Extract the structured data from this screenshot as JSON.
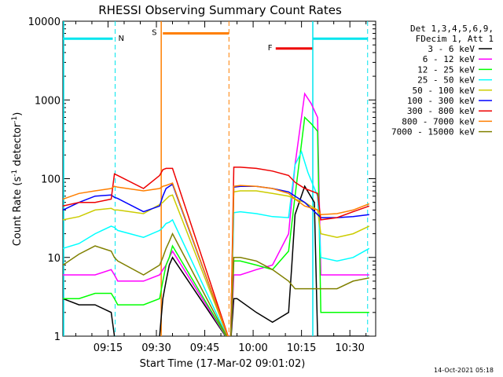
{
  "chart_data": {
    "type": "line",
    "title": "RHESSI Observing Summary Count Rates",
    "xlabel": "Start Time (17-Mar-02 09:01:02)",
    "ylabel_main": "Count Rate (s",
    "ylabel_sup": "-1",
    "ylabel_mid": " detector",
    "ylabel_end": ")",
    "yscale": "log",
    "ylim": [
      1,
      10000
    ],
    "xlim_minutes": [
      0,
      97
    ],
    "x_ticks": [
      "09:15",
      "09:30",
      "09:45",
      "10:00",
      "10:15",
      "10:30"
    ],
    "y_ticks": [
      "1",
      "10",
      "100",
      "1000",
      "10000"
    ],
    "legend_header": [
      "Det 1,3,4,5,6,9,",
      "FDecim 1, Att 1"
    ],
    "legend_position": "right",
    "footer": "14-Oct-2021 05:18",
    "flags": [
      {
        "label": "N",
        "color": "#00e5ee"
      },
      {
        "label": "S",
        "color": "#ff7f00"
      },
      {
        "label": "F",
        "color": "#ee0000"
      }
    ],
    "series": [
      {
        "name": "3 - 6 keV",
        "color": "#000000",
        "x": [
          0,
          5,
          10,
          15,
          16,
          17,
          25,
          30,
          31,
          32,
          33,
          34,
          52,
          53,
          54,
          60,
          65,
          70,
          71,
          72,
          75,
          78,
          79,
          80,
          85,
          90,
          95
        ],
        "y": [
          3,
          2.5,
          2.5,
          2,
          1,
          0.8,
          0.8,
          1,
          3,
          5,
          8,
          10,
          0.8,
          3,
          3,
          2,
          1.5,
          2,
          8,
          35,
          80,
          50,
          1,
          1,
          1,
          1,
          1
        ]
      },
      {
        "name": "6 - 12 keV",
        "color": "#ff00ff",
        "x": [
          0,
          5,
          10,
          15,
          16,
          17,
          25,
          30,
          31,
          32,
          33,
          34,
          52,
          53,
          55,
          60,
          65,
          70,
          72,
          75,
          77,
          79,
          80,
          85,
          90,
          95
        ],
        "y": [
          6,
          6,
          6,
          7,
          6,
          5,
          5,
          6,
          7,
          8,
          10,
          12,
          0.8,
          6,
          6,
          7,
          8,
          20,
          150,
          1200,
          900,
          600,
          6,
          6,
          6,
          6
        ]
      },
      {
        "name": "12 - 25 keV",
        "color": "#00ff00",
        "x": [
          0,
          5,
          10,
          15,
          16,
          17,
          25,
          30,
          31,
          32,
          33,
          34,
          52,
          53,
          55,
          60,
          65,
          70,
          72,
          75,
          77,
          79,
          80,
          85,
          90,
          95
        ],
        "y": [
          3,
          3,
          3.5,
          3.5,
          3,
          2.5,
          2.5,
          3,
          5,
          8,
          10,
          14,
          0.8,
          9,
          9,
          8,
          7,
          12,
          60,
          600,
          500,
          400,
          2,
          2,
          2,
          2
        ]
      },
      {
        "name": "25 - 50 keV",
        "color": "#00ffff",
        "x": [
          0,
          5,
          10,
          15,
          16,
          17,
          25,
          30,
          31,
          32,
          33,
          34,
          52,
          53,
          55,
          60,
          65,
          70,
          72,
          74,
          76,
          79,
          80,
          85,
          90,
          95
        ],
        "y": [
          13,
          15,
          20,
          25,
          24,
          22,
          18,
          22,
          24,
          27,
          28,
          30,
          0.8,
          37,
          38,
          36,
          33,
          32,
          150,
          220,
          120,
          60,
          10,
          9,
          10,
          13
        ]
      },
      {
        "name": "50 - 100 keV",
        "color": "#cccc00",
        "x": [
          0,
          5,
          10,
          15,
          16,
          17,
          25,
          30,
          31,
          32,
          33,
          34,
          52,
          53,
          55,
          60,
          65,
          70,
          72,
          75,
          79,
          80,
          85,
          90,
          95
        ],
        "y": [
          30,
          33,
          40,
          42,
          40,
          40,
          36,
          47,
          50,
          55,
          60,
          62,
          0.8,
          68,
          70,
          70,
          65,
          60,
          55,
          50,
          40,
          20,
          18,
          20,
          25
        ]
      },
      {
        "name": "100 - 300 keV",
        "color": "#0000ff",
        "x": [
          0,
          5,
          10,
          15,
          16,
          17,
          25,
          30,
          31,
          32,
          33,
          34,
          52,
          53,
          55,
          60,
          65,
          70,
          72,
          75,
          79,
          80,
          85,
          90,
          95
        ],
        "y": [
          40,
          50,
          60,
          62,
          58,
          56,
          38,
          45,
          60,
          75,
          80,
          85,
          0.8,
          78,
          80,
          80,
          75,
          68,
          60,
          50,
          35,
          32,
          32,
          33,
          35
        ]
      },
      {
        "name": "300 - 800 keV",
        "color": "#ee0000",
        "x": [
          0,
          5,
          10,
          15,
          16,
          17,
          25,
          30,
          31,
          32,
          33,
          34,
          52,
          53,
          55,
          60,
          65,
          70,
          72,
          75,
          79,
          80,
          85,
          90,
          95
        ],
        "y": [
          45,
          50,
          50,
          55,
          115,
          110,
          75,
          110,
          130,
          135,
          135,
          135,
          0.8,
          140,
          140,
          135,
          125,
          110,
          90,
          75,
          65,
          30,
          32,
          38,
          45
        ]
      },
      {
        "name": "800 - 7000 keV",
        "color": "#ff7f00",
        "x": [
          0,
          5,
          10,
          15,
          16,
          17,
          25,
          30,
          31,
          32,
          33,
          34,
          52,
          53,
          55,
          60,
          65,
          70,
          72,
          75,
          79,
          80,
          85,
          90,
          95
        ],
        "y": [
          55,
          65,
          70,
          75,
          80,
          78,
          70,
          75,
          80,
          82,
          85,
          88,
          0.8,
          80,
          82,
          80,
          75,
          65,
          55,
          45,
          40,
          35,
          36,
          40,
          48
        ]
      },
      {
        "name": "7000 - 15000 keV",
        "color": "#808000",
        "x": [
          0,
          5,
          10,
          15,
          16,
          17,
          25,
          30,
          31,
          32,
          33,
          34,
          52,
          53,
          55,
          60,
          65,
          70,
          72,
          75,
          79,
          80,
          85,
          90,
          95
        ],
        "y": [
          8,
          11,
          14,
          12,
          10,
          9,
          6,
          8,
          10,
          13,
          16,
          20,
          0.8,
          10,
          10,
          9,
          7,
          5,
          4,
          4,
          4,
          4,
          4,
          5,
          5.5
        ]
      }
    ],
    "annotations": {
      "intervals_minutes": {
        "N": {
          "start": 0,
          "end": 16.2,
          "level": 6000
        },
        "S_open": 30.5,
        "S_close": 51.5,
        "S_bar": [
          31,
          51.5,
          7000
        ],
        "F_bar": [
          66,
          77.5,
          4500
        ],
        "N2": {
          "start": 77.5,
          "end": 94.5,
          "level": 6000
        }
      }
    }
  }
}
